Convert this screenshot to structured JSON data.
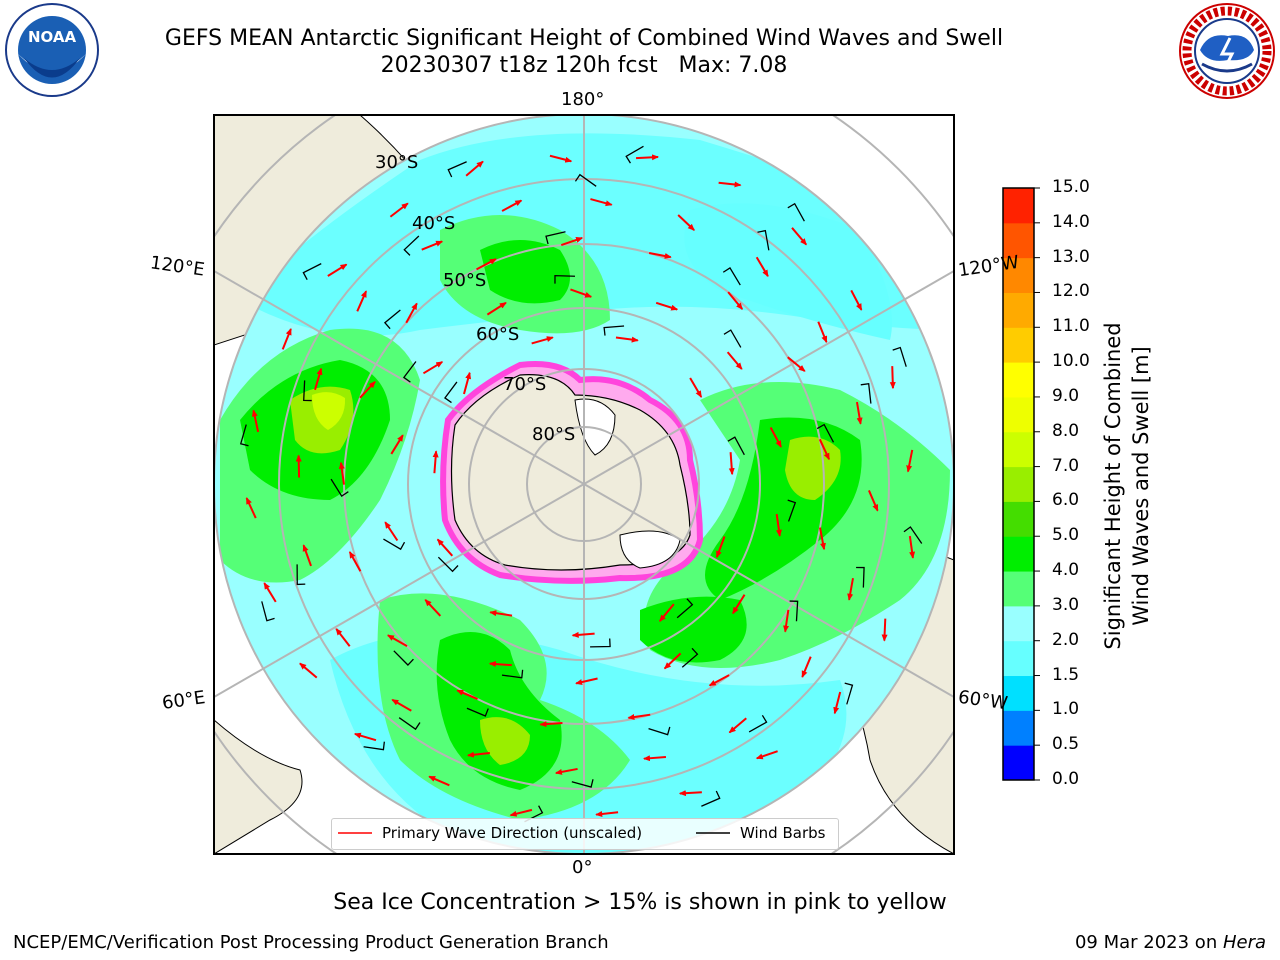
{
  "title_line1": "GEFS MEAN Antarctic Significant Height of Combined Wind Waves and Swell",
  "title_line2": "20230307 t18z 120h fcst   Max: 7.08",
  "caption": "Sea Ice Concentration > 15% is shown in pink to yellow",
  "footer_left": "NCEP/EMC/Verification Post Processing Product Generation Branch",
  "footer_right_date": "09 Mar 2023 on ",
  "footer_right_host": "Hera",
  "logos": {
    "left": "NOAA",
    "right": "NATIONAL WEATHER SERVICE"
  },
  "map": {
    "projection": "south-polar-stereographic",
    "longitude_labels": {
      "top": "180°",
      "bottom": "0°",
      "upper_left": "120°E",
      "upper_right": "120°W",
      "lower_left": "60°E",
      "lower_right": "60°W"
    },
    "latitude_labels": [
      "30°S",
      "40°S",
      "50°S",
      "60°S",
      "70°S",
      "80°S"
    ]
  },
  "legend": {
    "primary_wave": "Primary Wave Direction (unscaled)",
    "wind_barbs": "Wind Barbs"
  },
  "colorbar": {
    "title_line1": "Significant Height of Combined",
    "title_line2": "Wind Waves and Swell [m]",
    "ticks": [
      "15.0",
      "14.0",
      "13.0",
      "12.0",
      "11.0",
      "10.0",
      "9.0",
      "8.0",
      "7.0",
      "6.0",
      "5.0",
      "4.0",
      "3.0",
      "2.0",
      "1.5",
      "1.0",
      "0.5",
      "0.0"
    ],
    "colors": [
      "#0000ff",
      "#0080ff",
      "#00e0ff",
      "#66ffff",
      "#99ffff",
      "#55ff77",
      "#00ee00",
      "#44dd00",
      "#99ee00",
      "#ccff00",
      "#eeff00",
      "#ffff00",
      "#ffcc00",
      "#ffaa00",
      "#ff8800",
      "#ff5500",
      "#ff2200"
    ]
  },
  "colors": {
    "land": "#efecdc",
    "ocean_base": "#99ffff",
    "gridline": "#b5b5b5",
    "ice": "#ff44dd",
    "arrow": "#ff0000"
  }
}
